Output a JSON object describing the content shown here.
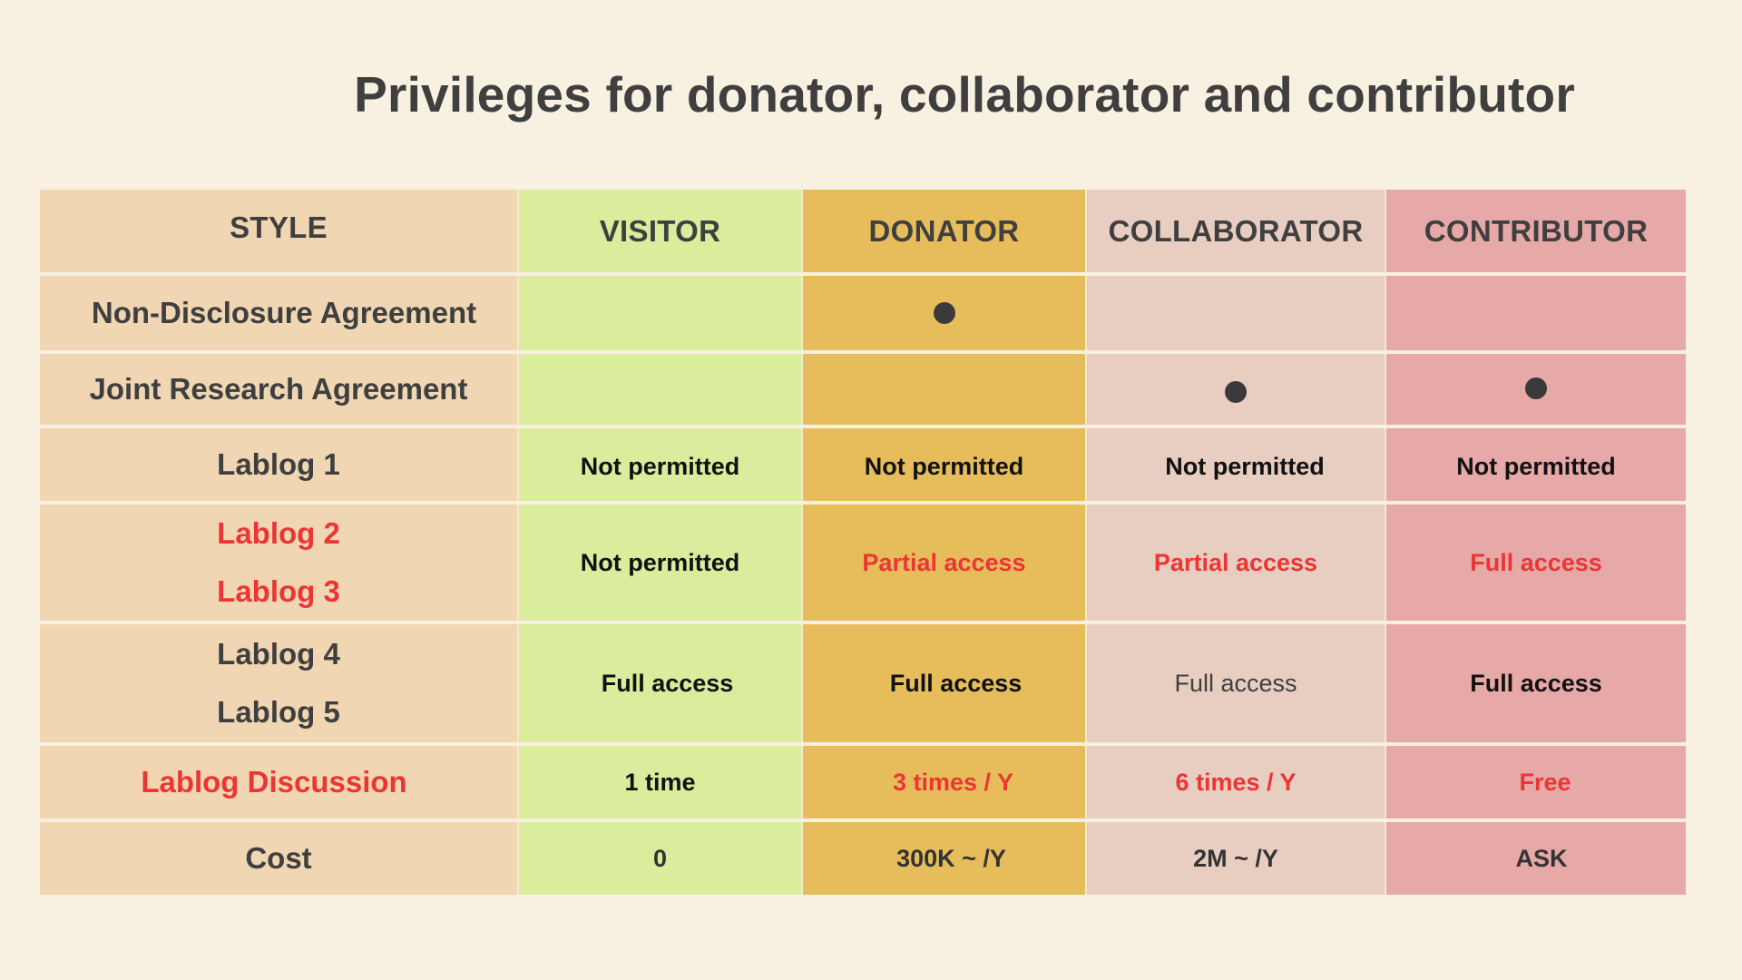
{
  "title": "Privileges for donator, collaborator and contributor",
  "colors": {
    "background": "#f8f0e1",
    "style_column": "#f0d6b2",
    "visitor_column": "#d9ed9c",
    "donator_column": "#e7bd5c",
    "collaborator_column": "#e8cdc1",
    "contributor_column": "#e6a9a7",
    "highlight_text": "#ec3535",
    "dark_text": "#3f3f3f"
  },
  "headers": {
    "style": "STYLE",
    "visitor": "VISITOR",
    "donator": "DONATOR",
    "collaborator": "COLLABORATOR",
    "contributor": "CONTRIBUTOR"
  },
  "rows": {
    "nda": {
      "label": "Non-Disclosure Agreement",
      "visitor": false,
      "donator": true,
      "collaborator": false,
      "contributor": false
    },
    "jra": {
      "label": "Joint Research Agreement",
      "visitor": false,
      "donator": false,
      "collaborator": true,
      "contributor": true
    },
    "lablog1": {
      "label": "Lablog 1",
      "visitor": "Not permitted",
      "donator": "Not permitted",
      "collaborator": "Not permitted",
      "contributor": "Not permitted"
    },
    "lablog23": {
      "label_line1": "Lablog 2",
      "label_line2": "Lablog 3",
      "visitor": "Not permitted",
      "donator": "Partial access",
      "collaborator": "Partial access",
      "contributor": "Full access"
    },
    "lablog45": {
      "label_line1": "Lablog 4",
      "label_line2": "Lablog 5",
      "visitor": "Full access",
      "donator": "Full access",
      "collaborator": "Full access",
      "contributor": "Full access"
    },
    "discussion": {
      "label": "Lablog Discussion",
      "visitor": "1 time",
      "donator": "3 times / Y",
      "collaborator": "6 times / Y",
      "contributor": "Free"
    },
    "cost": {
      "label": "Cost",
      "visitor": "0",
      "donator": "300K ~ /Y",
      "collaborator": "2M ~ /Y",
      "contributor": "ASK"
    }
  },
  "icons": {
    "check_mark": "filled-circle-dot"
  }
}
